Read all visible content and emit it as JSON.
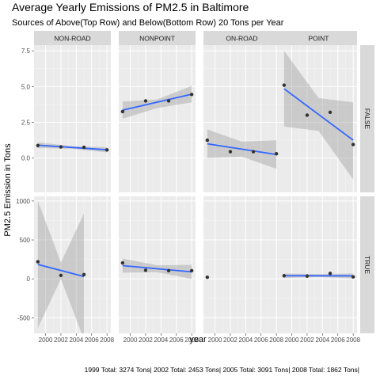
{
  "chart_data": {
    "type": "scatter",
    "title": "Average Yearly Emissions of PM2.5 in Baltimore",
    "subtitle": "Sources of Above(Top Row) and Below(Bottom Row) 20 Tons per Year",
    "xlabel": "year",
    "ylabel": "PM2.5 Emission in Tons",
    "caption": "1999 Total: 3274 Tons| 2002 Total: 2453 Tons| 2005 Total: 3091 Tons| 2008 Total: 1862 Tons|",
    "facet_columns": [
      "NON-ROAD",
      "NONPOINT",
      "ON-ROAD",
      "POINT"
    ],
    "facet_rows": [
      "FALSE",
      "TRUE"
    ],
    "xlim": [
      1998.5,
      2008.5
    ],
    "x_ticks": [
      2000,
      2002,
      2004,
      2006,
      2008
    ],
    "x_tick_labels": [
      "2000",
      "2002",
      "2004",
      "2006",
      "2008"
    ],
    "grid": true,
    "rows": [
      {
        "row": "FALSE",
        "ylim": [
          -2.4,
          7.9
        ],
        "y_ticks": [
          0.0,
          2.5,
          5.0,
          7.5
        ],
        "y_tick_labels": [
          "0.0",
          "2.5",
          "5.0",
          "7.5"
        ],
        "panels": [
          {
            "column": "NON-ROAD",
            "points": [
              [
                1999,
                0.88
              ],
              [
                2002,
                0.78
              ],
              [
                2005,
                0.75
              ],
              [
                2008,
                0.57
              ]
            ],
            "fit": [
              [
                1999,
                0.9
              ],
              [
                2008,
                0.58
              ]
            ],
            "band": [
              [
                1999,
                0.7,
                1.1
              ],
              [
                2003.5,
                0.65,
                0.83
              ],
              [
                2008,
                0.4,
                0.76
              ]
            ]
          },
          {
            "column": "NONPOINT",
            "points": [
              [
                1999,
                3.25
              ],
              [
                2002,
                4.0
              ],
              [
                2005,
                4.0
              ],
              [
                2008,
                4.45
              ]
            ],
            "fit": [
              [
                1999,
                3.35
              ],
              [
                2008,
                4.47
              ]
            ],
            "band": [
              [
                1999,
                2.75,
                3.95
              ],
              [
                2003.5,
                3.5,
                4.1
              ],
              [
                2008,
                3.9,
                5.05
              ]
            ]
          },
          {
            "column": "ON-ROAD",
            "points": [
              [
                1999,
                1.25
              ],
              [
                2002,
                0.45
              ],
              [
                2005,
                0.45
              ],
              [
                2008,
                0.3
              ]
            ],
            "fit": [
              [
                1999,
                1.0
              ],
              [
                2008,
                0.25
              ]
            ],
            "band": [
              [
                1999,
                0.0,
                2.0
              ],
              [
                2003.5,
                0.1,
                1.15
              ],
              [
                2008,
                -0.75,
                1.25
              ]
            ]
          },
          {
            "column": "POINT",
            "points": [
              [
                1999,
                5.1
              ],
              [
                2002,
                3.0
              ],
              [
                2005,
                3.2
              ],
              [
                2008,
                0.95
              ]
            ],
            "fit": [
              [
                1999,
                4.85
              ],
              [
                2008,
                1.25
              ]
            ],
            "band": [
              [
                1999,
                2.2,
                7.5
              ],
              [
                2003.5,
                1.9,
                4.2
              ],
              [
                2008,
                -1.5,
                3.9
              ]
            ]
          }
        ]
      },
      {
        "row": "TRUE",
        "ylim": [
          -700,
          1060
        ],
        "y_ticks": [
          -500,
          0,
          500,
          1000
        ],
        "y_tick_labels": [
          "-500",
          "0",
          "500",
          "1000"
        ],
        "panels": [
          {
            "column": "NON-ROAD",
            "points": [
              [
                1999,
                220
              ],
              [
                2002,
                45
              ],
              [
                2005,
                55
              ]
            ],
            "fit": [
              [
                1999,
                185
              ],
              [
                2005,
                30
              ]
            ],
            "band": [
              [
                1999,
                -630,
                1000
              ],
              [
                2002,
                0,
                210
              ],
              [
                2005,
                -780,
                840
              ]
            ]
          },
          {
            "column": "NONPOINT",
            "points": [
              [
                1999,
                205
              ],
              [
                2002,
                110
              ],
              [
                2005,
                105
              ],
              [
                2008,
                105
              ]
            ],
            "fit": [
              [
                1999,
                170
              ],
              [
                2008,
                90
              ]
            ],
            "band": [
              [
                1999,
                80,
                260
              ],
              [
                2003.5,
                85,
                175
              ],
              [
                2008,
                0,
                180
              ]
            ]
          },
          {
            "column": "ON-ROAD",
            "points": [
              [
                1999,
                20
              ]
            ],
            "fit": null,
            "band": null
          },
          {
            "column": "POINT",
            "points": [
              [
                1999,
                40
              ],
              [
                2002,
                35
              ],
              [
                2005,
                70
              ],
              [
                2008,
                25
              ]
            ],
            "fit": [
              [
                1999,
                40
              ],
              [
                2008,
                38
              ]
            ],
            "band": [
              [
                1999,
                10,
                70
              ],
              [
                2003.5,
                25,
                60
              ],
              [
                2008,
                5,
                70
              ]
            ]
          }
        ]
      }
    ],
    "colors": {
      "panel_background": "#ebebeb",
      "grid_major": "#ffffff",
      "grid_minor": "#f5f5f5",
      "strip_background": "#d9d9d9",
      "points": "#333333",
      "fit_line": "#3366ff",
      "confidence_band": "#999999",
      "text": "#1a1a1a",
      "axis_text": "#4d4d4d"
    }
  }
}
